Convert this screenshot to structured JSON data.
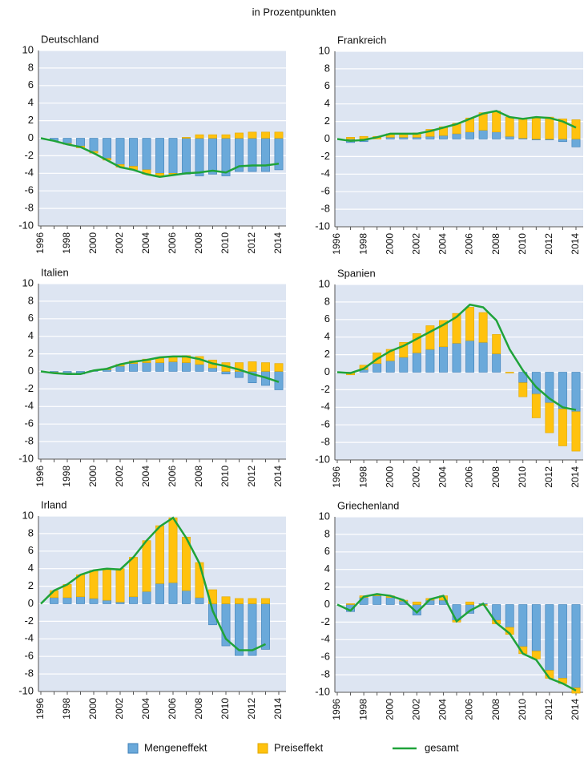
{
  "title": "in Prozentpunkten",
  "chart_data": [
    {
      "type": "bar",
      "title": "Deutschland",
      "categories": [
        "1996",
        null,
        "1998",
        null,
        "2000",
        null,
        "2002",
        null,
        "2004",
        null,
        "2006",
        null,
        "2008",
        null,
        "2010",
        null,
        "2012",
        null,
        "2014"
      ],
      "ylim": [
        -10,
        10
      ],
      "yticks": [
        -10,
        -8,
        -6,
        -4,
        -2,
        0,
        2,
        4,
        6,
        8,
        10
      ],
      "grid": true,
      "series": [
        {
          "name": "Mengeneffekt",
          "color": "#6aa9da",
          "values": [
            null,
            -0.3,
            -0.6,
            -0.9,
            -1.5,
            -2.3,
            -3.0,
            -3.2,
            -3.6,
            -4.0,
            -4.0,
            -4.1,
            -4.3,
            -4.1,
            -4.3,
            -3.8,
            -3.8,
            -3.8,
            -3.6
          ]
        },
        {
          "name": "Preiseffekt",
          "color": "#ffc20e",
          "values": [
            null,
            0,
            -0.1,
            -0.2,
            -0.2,
            -0.2,
            -0.3,
            -0.4,
            -0.5,
            -0.4,
            -0.2,
            0.1,
            0.4,
            0.4,
            0.4,
            0.6,
            0.7,
            0.7,
            0.7
          ]
        },
        {
          "name": "gesamt",
          "color": "#1fa33a",
          "type": "line",
          "values": [
            0,
            -0.3,
            -0.7,
            -1.0,
            -1.7,
            -2.5,
            -3.3,
            -3.6,
            -4.1,
            -4.4,
            -4.2,
            -4.0,
            -3.9,
            -3.7,
            -3.9,
            -3.2,
            -3.1,
            -3.1,
            -2.9
          ]
        }
      ]
    },
    {
      "type": "bar",
      "title": "Frankreich",
      "categories": [
        "1996",
        null,
        "1998",
        null,
        "2000",
        null,
        "2002",
        null,
        "2004",
        null,
        "2006",
        null,
        "2008",
        null,
        "2010",
        null,
        "2012",
        null,
        "2014"
      ],
      "ylim": [
        -10,
        10
      ],
      "yticks": [
        -10,
        -8,
        -6,
        -4,
        -2,
        0,
        2,
        4,
        6,
        8,
        10
      ],
      "grid": true,
      "series": [
        {
          "name": "Mengeneffekt",
          "color": "#6aa9da",
          "values": [
            null,
            -0.4,
            -0.3,
            0,
            0.2,
            0.2,
            0.2,
            0.3,
            0.4,
            0.6,
            0.8,
            1.0,
            0.8,
            0.3,
            0.1,
            -0.1,
            -0.1,
            -0.3,
            -0.9
          ]
        },
        {
          "name": "Preiseffekt",
          "color": "#ffc20e",
          "values": [
            null,
            0.2,
            0.3,
            0.3,
            0.4,
            0.4,
            0.5,
            0.8,
            1.0,
            1.2,
            1.6,
            2.0,
            2.4,
            2.2,
            2.2,
            2.5,
            2.5,
            2.3,
            2.2
          ]
        },
        {
          "name": "gesamt",
          "color": "#1fa33a",
          "type": "line",
          "values": [
            0,
            -0.2,
            -0.1,
            0.2,
            0.6,
            0.6,
            0.6,
            0.9,
            1.3,
            1.7,
            2.3,
            2.9,
            3.2,
            2.5,
            2.3,
            2.5,
            2.4,
            2.0,
            1.3
          ]
        }
      ]
    },
    {
      "type": "bar",
      "title": "Italien",
      "categories": [
        "1996",
        null,
        "1998",
        null,
        "2000",
        null,
        "2002",
        null,
        "2004",
        null,
        "2006",
        null,
        "2008",
        null,
        "2010",
        null,
        "2012",
        null,
        "2014"
      ],
      "ylim": [
        -10,
        10
      ],
      "yticks": [
        -10,
        -8,
        -6,
        -4,
        -2,
        0,
        2,
        4,
        6,
        8,
        10
      ],
      "grid": true,
      "series": [
        {
          "name": "Mengeneffekt",
          "color": "#6aa9da",
          "values": [
            null,
            -0.1,
            -0.2,
            -0.3,
            0.1,
            0.2,
            0.6,
            0.9,
            1.0,
            1.0,
            1.1,
            1.0,
            0.8,
            0.4,
            -0.3,
            -0.7,
            -1.3,
            -1.6,
            -2.1
          ]
        },
        {
          "name": "Preiseffekt",
          "color": "#ffc20e",
          "values": [
            null,
            -0.1,
            -0.1,
            0,
            0,
            0.1,
            0.2,
            0.3,
            0.4,
            0.5,
            0.6,
            0.8,
            0.9,
            0.9,
            1.0,
            1.0,
            1.1,
            1.0,
            0.9
          ]
        },
        {
          "name": "gesamt",
          "color": "#1fa33a",
          "type": "line",
          "values": [
            0,
            -0.2,
            -0.3,
            -0.3,
            0.1,
            0.3,
            0.8,
            1.1,
            1.3,
            1.6,
            1.7,
            1.7,
            1.4,
            0.9,
            0.6,
            0.2,
            -0.3,
            -0.7,
            -1.2
          ]
        }
      ]
    },
    {
      "type": "bar",
      "title": "Spanien",
      "categories": [
        "1996",
        null,
        "1998",
        null,
        "2000",
        null,
        "2002",
        null,
        "2004",
        null,
        "2006",
        null,
        "2008",
        null,
        "2010",
        null,
        "2012",
        null,
        "2014"
      ],
      "ylim": [
        -10,
        10
      ],
      "yticks": [
        -10,
        -8,
        -6,
        -4,
        -2,
        0,
        2,
        4,
        6,
        8,
        10
      ],
      "grid": true,
      "series": [
        {
          "name": "Mengeneffekt",
          "color": "#6aa9da",
          "values": [
            null,
            -0.1,
            0.3,
            1.0,
            1.3,
            1.7,
            2.2,
            2.6,
            2.9,
            3.3,
            3.6,
            3.4,
            2.1,
            0,
            -1.2,
            -2.5,
            -3.5,
            -4.2,
            -4.5
          ]
        },
        {
          "name": "Preiseffekt",
          "color": "#ffc20e",
          "values": [
            null,
            -0.2,
            0.5,
            1.2,
            1.3,
            1.7,
            2.2,
            2.7,
            3.0,
            3.4,
            3.8,
            3.4,
            2.2,
            -0.1,
            -1.6,
            -2.7,
            -3.4,
            -4.2,
            -4.5
          ]
        },
        {
          "name": "gesamt",
          "color": "#1fa33a",
          "type": "line",
          "values": [
            0,
            -0.1,
            0.4,
            1.5,
            2.4,
            3.0,
            3.8,
            4.6,
            5.4,
            6.3,
            7.7,
            7.4,
            5.9,
            2.6,
            0.2,
            -1.7,
            -3.0,
            -4.0,
            -4.3
          ]
        }
      ]
    },
    {
      "type": "bar",
      "title": "Irland",
      "categories": [
        "1996",
        null,
        "1998",
        null,
        "2000",
        null,
        "2002",
        null,
        "2004",
        null,
        "2006",
        null,
        "2008",
        null,
        "2010",
        null,
        "2012",
        null,
        "2014"
      ],
      "ylim": [
        -10,
        10
      ],
      "yticks": [
        -10,
        -8,
        -6,
        -4,
        -2,
        0,
        2,
        4,
        6,
        8,
        10
      ],
      "grid": true,
      "series": [
        {
          "name": "Mengeneffekt",
          "color": "#6aa9da",
          "values": [
            null,
            0.7,
            0.7,
            0.8,
            0.6,
            0.4,
            0.2,
            0.8,
            1.4,
            2.3,
            2.4,
            1.5,
            0.7,
            -2.4,
            -4.8,
            -5.9,
            -5.9,
            -5.2,
            null
          ]
        },
        {
          "name": "Preiseffekt",
          "color": "#ffc20e",
          "values": [
            null,
            0.8,
            1.5,
            2.5,
            3.2,
            3.6,
            3.8,
            4.5,
            5.8,
            6.6,
            7.4,
            6.1,
            4.0,
            1.6,
            0.8,
            0.6,
            0.6,
            0.6,
            null
          ]
        },
        {
          "name": "gesamt",
          "color": "#1fa33a",
          "type": "line",
          "values": [
            0,
            1.5,
            2.2,
            3.3,
            3.8,
            4.0,
            3.9,
            5.3,
            7.2,
            8.8,
            9.8,
            7.5,
            4.6,
            -0.8,
            -4.0,
            -5.3,
            -5.3,
            -4.6,
            null
          ]
        }
      ]
    },
    {
      "type": "bar",
      "title": "Griechenland",
      "categories": [
        "1996",
        null,
        "1998",
        null,
        "2000",
        null,
        "2002",
        null,
        "2004",
        null,
        "2006",
        null,
        "2008",
        null,
        "2010",
        null,
        "2012",
        null,
        "2014"
      ],
      "ylim": [
        -10,
        10
      ],
      "yticks": [
        -10,
        -8,
        -6,
        -4,
        -2,
        0,
        2,
        4,
        6,
        8,
        10
      ],
      "grid": true,
      "series": [
        {
          "name": "Mengeneffekt",
          "color": "#6aa9da",
          "values": [
            null,
            -0.8,
            0.8,
            1.0,
            0.8,
            0.4,
            -1.2,
            0.5,
            0.5,
            -1.8,
            -1.0,
            0.1,
            -1.8,
            -2.6,
            -4.8,
            -5.3,
            -7.5,
            -8.4,
            -9.5
          ]
        },
        {
          "name": "Preiseffekt",
          "color": "#ffc20e",
          "values": [
            null,
            0.1,
            0.2,
            0.2,
            0.2,
            0.1,
            0.3,
            0.2,
            0.5,
            -0.2,
            0.3,
            -0.1,
            -0.4,
            -0.8,
            -0.8,
            -0.9,
            -0.9,
            -0.6,
            -0.6
          ]
        },
        {
          "name": "gesamt",
          "color": "#1fa33a",
          "type": "line",
          "values": [
            0,
            -0.7,
            0.9,
            1.2,
            1.0,
            0.5,
            -0.9,
            0.6,
            1.0,
            -1.9,
            -0.7,
            0.1,
            -2.1,
            -3.3,
            -5.6,
            -6.3,
            -8.4,
            -9.0,
            -9.8
          ]
        }
      ]
    }
  ]
}
